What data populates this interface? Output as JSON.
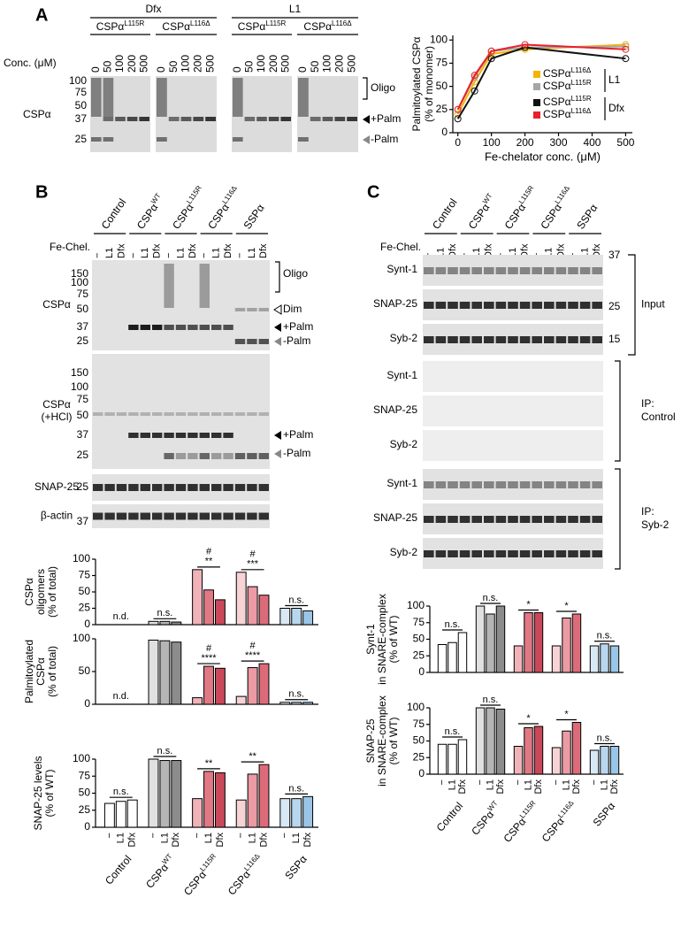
{
  "figure": {
    "panel_a": {
      "label": "A",
      "groups": [
        "Dfx",
        "L1"
      ],
      "mutants": [
        "CSPαL115R",
        "CSPαL116Δ"
      ],
      "conc_label": "Conc. (μM)",
      "concentrations": [
        0,
        50,
        100,
        200,
        500
      ],
      "row_label": "CSPα",
      "markers": [
        100,
        75,
        50,
        37,
        25
      ],
      "bands": [
        "Oligo",
        "+Palm",
        "-Palm"
      ]
    },
    "panel_b": {
      "label": "B",
      "constructs": [
        "Control",
        "CSPαWT",
        "CSPαL115R",
        "CSPαL116Δ",
        "SSPα"
      ],
      "fe_label": "Fe-Chel.",
      "treatments": [
        "−",
        "L1",
        "Dfx"
      ],
      "blots": [
        {
          "label": [
            "CSPα"
          ],
          "markers": [
            150,
            100,
            75,
            50,
            37,
            25
          ],
          "bands": [
            "Oligo",
            "Dim",
            "+Palm",
            "-Palm"
          ]
        },
        {
          "label": [
            "CSPα",
            "(+HCl)"
          ],
          "markers": [
            150,
            100,
            75,
            50,
            37,
            25
          ],
          "bands": [
            "+Palm",
            "-Palm"
          ]
        },
        {
          "label": [
            "SNAP-25"
          ],
          "markers": [
            25
          ],
          "bands": []
        },
        {
          "label": [
            "β-actin"
          ],
          "markers": [
            37
          ],
          "bands": []
        }
      ]
    },
    "panel_c": {
      "label": "C",
      "constructs": [
        "Control",
        "CSPαWT",
        "CSPαL115R",
        "CSPαL116Δ",
        "SSPα"
      ],
      "fe_label": "Fe-Chel.",
      "treatments": [
        "−",
        "L1",
        "Dfx"
      ],
      "markers": [
        37,
        25,
        15
      ],
      "sections": [
        {
          "name": [
            "Input"
          ],
          "rows": [
            "Synt-1",
            "SNAP-25",
            "Syb-2"
          ]
        },
        {
          "name": [
            "IP:",
            "Control"
          ],
          "rows": [
            "Synt-1",
            "SNAP-25",
            "Syb-2"
          ]
        },
        {
          "name": [
            "IP:",
            "Syb-2"
          ],
          "rows": [
            "Synt-1",
            "SNAP-25",
            "Syb-2"
          ]
        }
      ]
    }
  },
  "chart_data": [
    {
      "type": "line",
      "x_label": "Fe-chelator conc. (μM)",
      "y_label": [
        "Palmitoylated CSPα",
        "(% of monomer)"
      ],
      "x": [
        0,
        50,
        100,
        200,
        500
      ],
      "xlim": [
        -15,
        520
      ],
      "xticks": [
        0,
        100,
        200,
        300,
        400,
        500
      ],
      "ylim": [
        0,
        105
      ],
      "yticks": [
        0,
        25,
        50,
        75,
        100
      ],
      "series": [
        {
          "name": "CSPαL116Δ",
          "color": "#f5b400",
          "values": [
            20,
            55,
            85,
            90,
            95
          ]
        },
        {
          "name": "CSPαL115R",
          "color": "#a6a6a6",
          "values": [
            25,
            60,
            88,
            92,
            93
          ]
        },
        {
          "name": "CSPαL115R",
          "color": "#111111",
          "values": [
            15,
            45,
            80,
            92,
            80
          ]
        },
        {
          "name": "CSPαL116Δ",
          "color": "#e8202a",
          "values": [
            25,
            62,
            88,
            95,
            90
          ]
        }
      ],
      "legend_groups": [
        "L1",
        "Dfx"
      ]
    },
    {
      "type": "bar",
      "y_label": [
        "CSPα",
        "oligomers",
        "(% of total)"
      ],
      "ylim": [
        0,
        100
      ],
      "yticks": [
        0,
        25,
        50,
        75,
        100
      ],
      "values": [
        [
          null,
          null,
          null
        ],
        [
          5,
          5,
          4
        ],
        [
          84,
          53,
          38
        ],
        [
          80,
          58,
          45
        ],
        [
          25,
          25,
          21
        ]
      ],
      "colors": [
        [
          "#ffffff",
          "#ffffff",
          "#ffffff"
        ],
        [
          "#e0e0e0",
          "#b5b5b5",
          "#8c8c8c"
        ],
        [
          "#f0b3b8",
          "#e07885",
          "#c9485a"
        ],
        [
          "#f7d3d6",
          "#ec9aa3",
          "#dc6b7a"
        ],
        [
          "#d8e9f5",
          "#b8d7ee",
          "#9ac5e6"
        ]
      ],
      "annotations": [
        [
          "n.d."
        ],
        [
          "n.s."
        ],
        [
          "**",
          "#"
        ],
        [
          "***",
          "#"
        ],
        [
          "n.s."
        ]
      ]
    },
    {
      "type": "bar",
      "y_label": [
        "Palmitoylated",
        "CSPα",
        "(% of total)"
      ],
      "ylim": [
        0,
        100
      ],
      "yticks": [
        0,
        50,
        100
      ],
      "values": [
        [
          null,
          null,
          null
        ],
        [
          98,
          97,
          95
        ],
        [
          10,
          58,
          55
        ],
        [
          12,
          56,
          62
        ],
        [
          3,
          3,
          3
        ]
      ],
      "colors": [
        [
          "#ffffff",
          "#ffffff",
          "#ffffff"
        ],
        [
          "#e0e0e0",
          "#b5b5b5",
          "#8c8c8c"
        ],
        [
          "#f0b3b8",
          "#e07885",
          "#c9485a"
        ],
        [
          "#f7d3d6",
          "#ec9aa3",
          "#dc6b7a"
        ],
        [
          "#d8e9f5",
          "#b8d7ee",
          "#9ac5e6"
        ]
      ],
      "annotations": [
        [
          "n.d."
        ],
        [],
        [
          "****",
          "#"
        ],
        [
          "****",
          "#"
        ],
        [
          "n.s."
        ]
      ]
    },
    {
      "type": "bar",
      "y_label": [
        "SNAP-25 levels",
        "(% of WT)"
      ],
      "ylim": [
        0,
        100
      ],
      "yticks": [
        0,
        25,
        50,
        75,
        100
      ],
      "values": [
        [
          35,
          38,
          40
        ],
        [
          100,
          98,
          98
        ],
        [
          42,
          82,
          80
        ],
        [
          40,
          78,
          92
        ],
        [
          42,
          42,
          45
        ]
      ],
      "colors": [
        [
          "#ffffff",
          "#ffffff",
          "#ffffff"
        ],
        [
          "#e0e0e0",
          "#b5b5b5",
          "#8c8c8c"
        ],
        [
          "#f0b3b8",
          "#e07885",
          "#c9485a"
        ],
        [
          "#f7d3d6",
          "#ec9aa3",
          "#dc6b7a"
        ],
        [
          "#d8e9f5",
          "#b8d7ee",
          "#9ac5e6"
        ]
      ],
      "annotations": [
        [
          "n.s."
        ],
        [
          "n.s."
        ],
        [
          "**"
        ],
        [
          "**"
        ],
        [
          "n.s."
        ]
      ],
      "categories": [
        "Control",
        "CSPαWT",
        "CSPαL115R",
        "CSPαL116Δ",
        "SSPα"
      ],
      "subcategories": [
        "−",
        "L1",
        "Dfx"
      ]
    },
    {
      "type": "bar",
      "y_label": [
        "Synt-1",
        "in SNARE-complex",
        "(% of WT)"
      ],
      "ylim": [
        0,
        100
      ],
      "yticks": [
        0,
        25,
        50,
        75,
        100
      ],
      "values": [
        [
          42,
          45,
          60
        ],
        [
          100,
          88,
          100
        ],
        [
          40,
          90,
          90
        ],
        [
          40,
          82,
          88
        ],
        [
          40,
          43,
          40
        ]
      ],
      "colors": [
        [
          "#ffffff",
          "#ffffff",
          "#ffffff"
        ],
        [
          "#e0e0e0",
          "#b5b5b5",
          "#8c8c8c"
        ],
        [
          "#f0b3b8",
          "#e07885",
          "#c9485a"
        ],
        [
          "#f7d3d6",
          "#ec9aa3",
          "#dc6b7a"
        ],
        [
          "#d8e9f5",
          "#b8d7ee",
          "#9ac5e6"
        ]
      ],
      "annotations": [
        [
          "n.s."
        ],
        [
          "n.s."
        ],
        [
          "*"
        ],
        [
          "*"
        ],
        [
          "n.s."
        ]
      ]
    },
    {
      "type": "bar",
      "y_label": [
        "SNAP-25",
        "in SNARE-complex",
        "(% of WT)"
      ],
      "ylim": [
        0,
        100
      ],
      "yticks": [
        0,
        25,
        50,
        75,
        100
      ],
      "values": [
        [
          45,
          45,
          52
        ],
        [
          100,
          100,
          98
        ],
        [
          42,
          70,
          72
        ],
        [
          40,
          65,
          78
        ],
        [
          36,
          42,
          42
        ]
      ],
      "colors": [
        [
          "#ffffff",
          "#ffffff",
          "#ffffff"
        ],
        [
          "#e0e0e0",
          "#b5b5b5",
          "#8c8c8c"
        ],
        [
          "#f0b3b8",
          "#e07885",
          "#c9485a"
        ],
        [
          "#f7d3d6",
          "#ec9aa3",
          "#dc6b7a"
        ],
        [
          "#d8e9f5",
          "#b8d7ee",
          "#9ac5e6"
        ]
      ],
      "annotations": [
        [
          "n.s."
        ],
        [
          "n.s."
        ],
        [
          "*"
        ],
        [
          "*"
        ],
        [
          "n.s."
        ]
      ],
      "categories": [
        "Control",
        "CSPαWT",
        "CSPαL115R",
        "CSPαL116Δ",
        "SSPα"
      ],
      "subcategories": [
        "−",
        "L1",
        "Dfx"
      ]
    }
  ]
}
